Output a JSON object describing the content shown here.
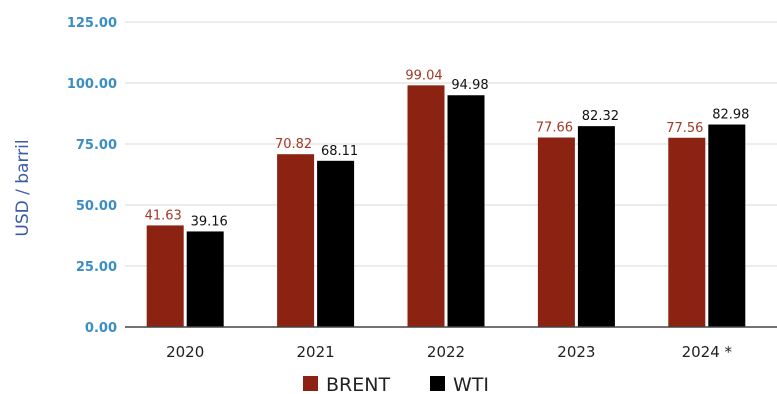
{
  "chart_data": {
    "type": "bar",
    "title": "",
    "xlabel": "",
    "ylabel": "USD / barril",
    "ylim": [
      0,
      125
    ],
    "yticks": [
      "0.00",
      "25.00",
      "50.00",
      "75.00",
      "100.00",
      "125.00"
    ],
    "categories": [
      "2020",
      "2021",
      "2022",
      "2023",
      "2024 *"
    ],
    "series": [
      {
        "name": "BRENT",
        "color": "#8B2212",
        "values": [
          41.63,
          70.82,
          99.04,
          77.66,
          77.56
        ],
        "labels": [
          "41.63",
          "70.82",
          "99.04",
          "77.66",
          "77.56"
        ]
      },
      {
        "name": "WTI",
        "color": "#000000",
        "values": [
          39.16,
          68.11,
          94.98,
          82.32,
          82.98
        ],
        "labels": [
          "39.16",
          "68.11",
          "94.98",
          "82.32",
          "82.98"
        ]
      }
    ],
    "grid": true,
    "legend_position": "bottom",
    "tick_color": "#3A8DC5",
    "ylabel_color": "#3B5BA8"
  }
}
